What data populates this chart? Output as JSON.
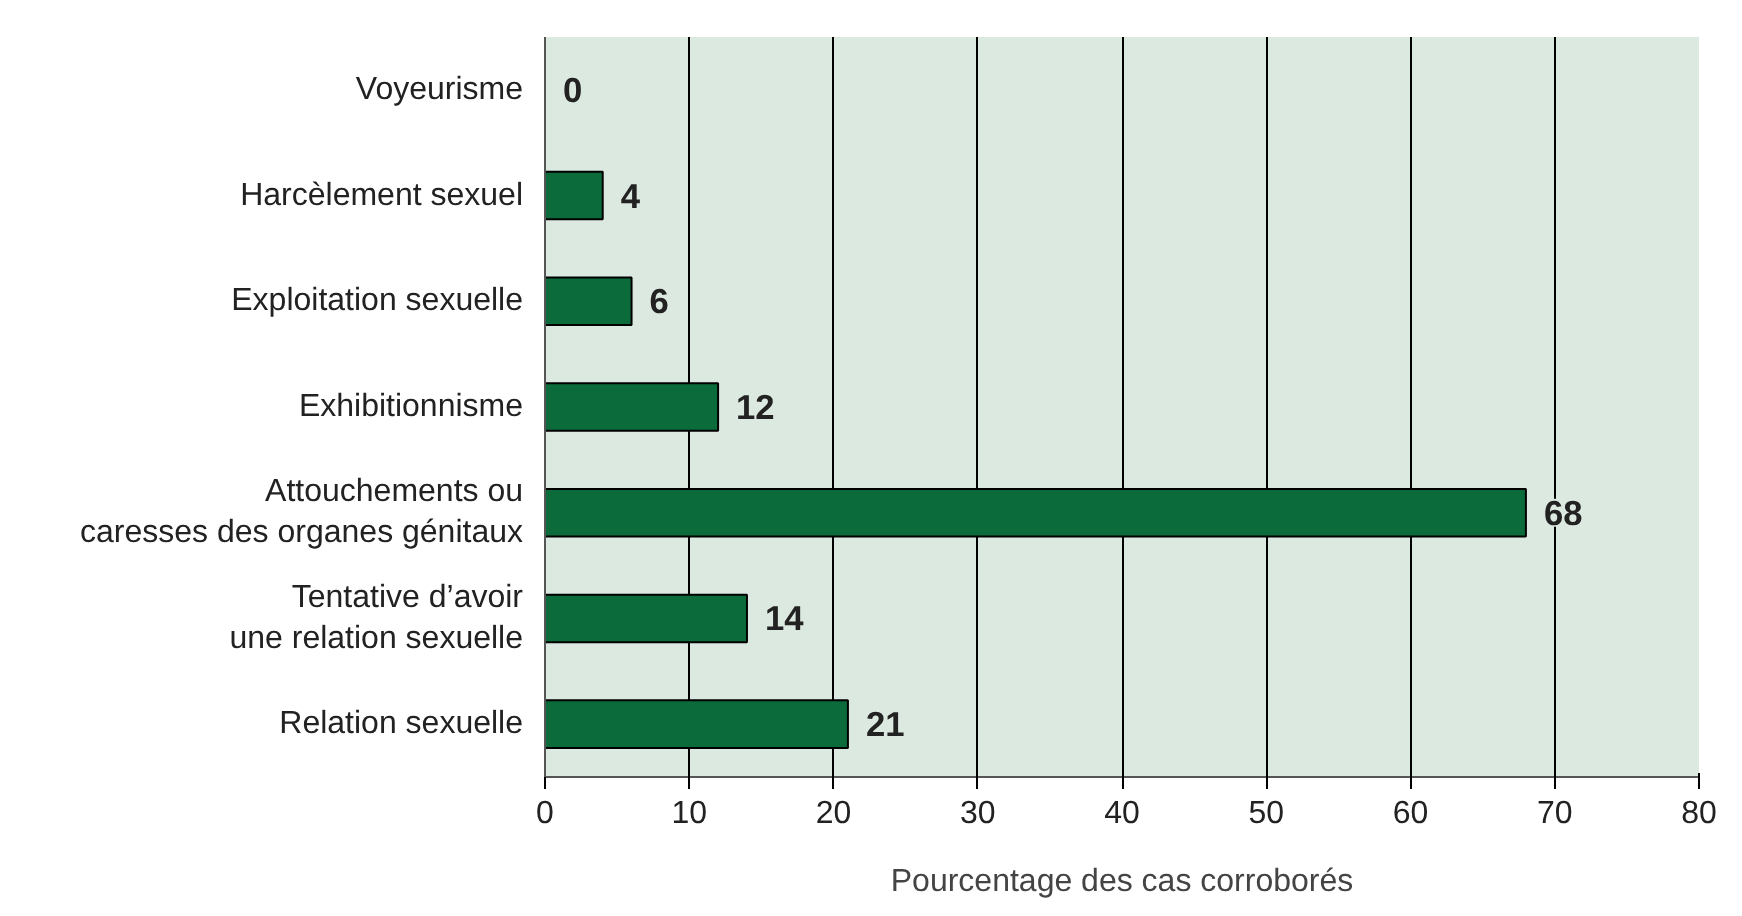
{
  "chart_data": {
    "type": "bar",
    "orientation": "horizontal",
    "xlabel": "Pourcentage des cas corroborés",
    "categories": [
      "Voyeurisme",
      "Harcèlement sexuel",
      "Exploitation sexuelle",
      "Exhibitionnisme",
      "Attouchements ou\ncaresses des organes génitaux",
      "Tentative d’avoir\nune relation sexuelle",
      "Relation sexuelle"
    ],
    "values": [
      0,
      4,
      6,
      12,
      68,
      14,
      21
    ],
    "color": "#0b6b3a",
    "xlim": [
      0,
      80
    ],
    "xticks": [
      0,
      10,
      20,
      30,
      40,
      50,
      60,
      70,
      80
    ],
    "grid": "x",
    "data_labels": true
  }
}
